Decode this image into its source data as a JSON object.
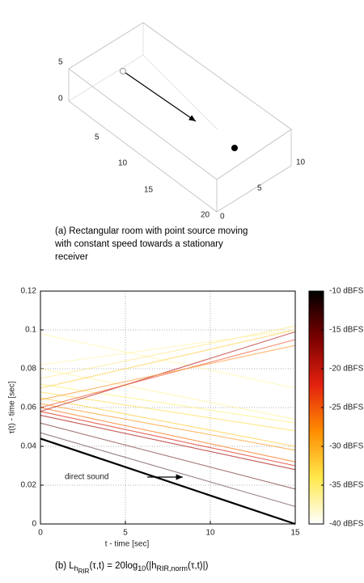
{
  "figure_a": {
    "z_ticks": [
      "5",
      "0"
    ],
    "x_ticks": [
      "5",
      "10",
      "15",
      "20"
    ],
    "y_ticks": [
      "0",
      "5",
      "10"
    ],
    "caption": [
      "(a) Rectangular room with point source moving",
      "with constant speed towards a stationary",
      "receiver"
    ]
  },
  "chart_data": {
    "type": "line",
    "xlabel": "t - time [sec]",
    "ylabel": "τ(t) - time [sec]",
    "annotation": "direct sound",
    "x": [
      0,
      15
    ],
    "xlim": [
      0,
      15
    ],
    "xticks": [
      0,
      5,
      10,
      15
    ],
    "ylim": [
      0,
      0.12
    ],
    "yticks": [
      0,
      0.02,
      0.04,
      0.06,
      0.08,
      0.1,
      0.12
    ],
    "grid": true,
    "series": [
      {
        "color": "#000000",
        "values": [
          0.044,
          0
        ]
      },
      {
        "color": "#7a5a5a",
        "values": [
          0.047,
          0.009
        ]
      },
      {
        "color": "#8a4a4a",
        "values": [
          0.052,
          0.018
        ]
      },
      {
        "color": "#b02020",
        "values": [
          0.056,
          0.028
        ]
      },
      {
        "color": "#e03020",
        "values": [
          0.058,
          0.03
        ]
      },
      {
        "color": "#ff7a20",
        "values": [
          0.06,
          0.032
        ]
      },
      {
        "color": "#ffa030",
        "values": [
          0.062,
          0.038
        ]
      },
      {
        "color": "#ffd040",
        "values": [
          0.065,
          0.04
        ]
      },
      {
        "color": "#ffe060",
        "values": [
          0.068,
          0.048
        ]
      },
      {
        "color": "#fff080",
        "values": [
          0.072,
          0.052
        ]
      },
      {
        "color": "#fff4a0",
        "values": [
          0.08,
          0.054
        ]
      },
      {
        "color": "#fff8b0",
        "values": [
          0.098,
          0.07
        ]
      },
      {
        "color": "#c03030",
        "values": [
          0.058,
          0.099
        ]
      },
      {
        "color": "#f06040",
        "values": [
          0.06,
          0.095
        ]
      },
      {
        "color": "#ffa040",
        "values": [
          0.064,
          0.092
        ]
      },
      {
        "color": "#ffd050",
        "values": [
          0.07,
          0.1
        ]
      },
      {
        "color": "#ffe890",
        "values": [
          0.075,
          0.102
        ]
      },
      {
        "color": "#fff4b0",
        "values": [
          0.082,
          0.1
        ]
      }
    ],
    "colorbar": {
      "lim": [
        -40,
        -10
      ],
      "colormap": [
        "#000000",
        "#7a0000",
        "#e3200f",
        "#ff8c00",
        "#ffe84a",
        "#ffffff"
      ],
      "ticks": [
        {
          "value": -10,
          "label": "-10 dBFS"
        },
        {
          "value": -15,
          "label": "-15 dBFS"
        },
        {
          "value": -20,
          "label": "-20 dBFS"
        },
        {
          "value": -25,
          "label": "-25 dBFS"
        },
        {
          "value": -30,
          "label": "-30 dBFS"
        },
        {
          "value": -35,
          "label": "-35 dBFS"
        },
        {
          "value": -40,
          "label": "-40 dBFS"
        }
      ]
    },
    "caption": [
      "(b) L",
      "h",
      "RIR",
      "(τ,t) = 20log",
      "10",
      "(|h",
      "RIR,norm",
      "(τ,t)|)"
    ]
  }
}
